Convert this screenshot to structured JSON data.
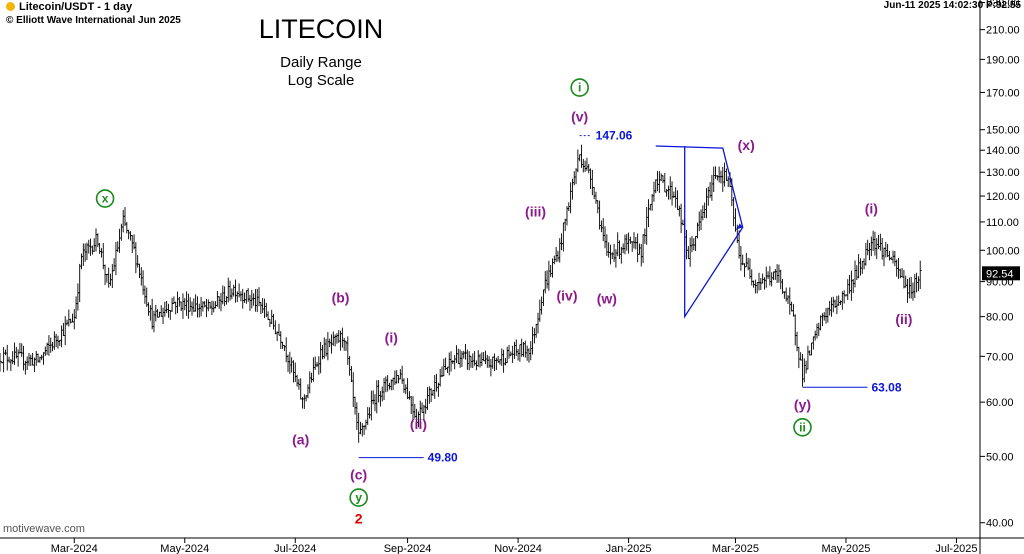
{
  "header": {
    "symbol": "Litecoin/USDT - 1 day",
    "copyright": "© Elliott Wave International Jun 2025",
    "stamp": "Jun-11 2025  14:02:30  P:92.55"
  },
  "title": "LITECOIN",
  "subtitle1": "Daily Range",
  "subtitle2": "Log Scale",
  "watermark": "motivewave.com",
  "colors": {
    "wave_purple": "#8b1a8b",
    "cycle_green": "#1a8a1a",
    "price_blue": "#0a16d6",
    "red": "#e00000",
    "bars": "#000000"
  },
  "chart_data": {
    "type": "line",
    "scale": "log",
    "ylim": [
      38,
      232
    ],
    "y_ticks": [
      40,
      50,
      60,
      70,
      80,
      90,
      100,
      110,
      120,
      130,
      140,
      150,
      170,
      190,
      210,
      230
    ],
    "x_ticks": [
      "Mar-2024",
      "May-2024",
      "Jul-2024",
      "Sep-2024",
      "Nov-2024",
      "Jan-2025",
      "Mar-2025",
      "May-2025",
      "Jul-2025"
    ],
    "last_price": "92.54",
    "series": [
      {
        "values": [
          [
            "2024-01-20",
            70
          ],
          [
            "2024-02-10",
            69
          ],
          [
            "2024-03-01",
            80
          ],
          [
            "2024-03-05",
            98
          ],
          [
            "2024-03-14",
            104
          ],
          [
            "2024-03-20",
            88
          ],
          [
            "2024-03-28",
            110
          ],
          [
            "2024-04-03",
            100
          ],
          [
            "2024-04-13",
            79
          ],
          [
            "2024-04-25",
            84
          ],
          [
            "2024-05-15",
            82
          ],
          [
            "2024-05-28",
            88
          ],
          [
            "2024-06-12",
            83
          ],
          [
            "2024-06-24",
            74
          ],
          [
            "2024-07-05",
            60
          ],
          [
            "2024-07-15",
            71
          ],
          [
            "2024-07-28",
            75
          ],
          [
            "2024-08-05",
            53
          ],
          [
            "2024-08-15",
            62
          ],
          [
            "2024-08-28",
            66
          ],
          [
            "2024-09-06",
            57
          ],
          [
            "2024-09-18",
            65
          ],
          [
            "2024-09-28",
            70
          ],
          [
            "2024-10-15",
            68
          ],
          [
            "2024-10-30",
            71
          ],
          [
            "2024-11-08",
            72
          ],
          [
            "2024-11-15",
            88
          ],
          [
            "2024-11-24",
            101
          ],
          [
            "2024-12-01",
            125
          ],
          [
            "2024-12-05",
            138
          ],
          [
            "2024-12-12",
            126
          ],
          [
            "2024-12-20",
            98
          ],
          [
            "2024-12-30",
            102
          ],
          [
            "2025-01-08",
            100
          ],
          [
            "2025-01-16",
            128
          ],
          [
            "2025-01-27",
            120
          ],
          [
            "2025-02-03",
            98
          ],
          [
            "2025-02-10",
            111
          ],
          [
            "2025-02-18",
            130
          ],
          [
            "2025-02-25",
            127
          ],
          [
            "2025-03-03",
            98
          ],
          [
            "2025-03-12",
            90
          ],
          [
            "2025-03-25",
            92
          ],
          [
            "2025-04-02",
            79
          ],
          [
            "2025-04-07",
            66
          ],
          [
            "2025-04-18",
            80
          ],
          [
            "2025-04-30",
            86
          ],
          [
            "2025-05-10",
            96
          ],
          [
            "2025-05-15",
            104
          ],
          [
            "2025-05-25",
            98
          ],
          [
            "2025-06-05",
            87
          ],
          [
            "2025-06-11",
            92.5
          ]
        ]
      }
    ],
    "annotations": [
      {
        "date": "2024-03-18",
        "price": 112,
        "label": "x",
        "style": "circle-green",
        "pos": "above"
      },
      {
        "date": "2024-07-04",
        "price": 56,
        "label": "(a)",
        "style": "purple",
        "pos": "below"
      },
      {
        "date": "2024-07-26",
        "price": 80,
        "label": "(b)",
        "style": "purple",
        "pos": "above"
      },
      {
        "date": "2024-08-05",
        "price": 49.8,
        "label": "(c)",
        "style": "purple",
        "pos": "below"
      },
      {
        "date": "2024-08-05",
        "price": 49.8,
        "label": "y",
        "style": "circle-green",
        "pos": "below2"
      },
      {
        "date": "2024-08-05",
        "price": 49.8,
        "label": "2",
        "style": "red",
        "pos": "below3"
      },
      {
        "date": "2024-08-23",
        "price": 70,
        "label": "(i)",
        "style": "purple",
        "pos": "above"
      },
      {
        "date": "2024-09-07",
        "price": 59,
        "label": "(ii)",
        "style": "purple",
        "pos": "below"
      },
      {
        "date": "2024-11-25",
        "price": 112,
        "label": "(iii)",
        "style": "purple",
        "pos": "left"
      },
      {
        "date": "2024-11-28",
        "price": 91,
        "label": "(iv)",
        "style": "purple",
        "pos": "below"
      },
      {
        "date": "2024-12-05",
        "price": 147.06,
        "label": "(v)",
        "style": "purple",
        "pos": "above"
      },
      {
        "date": "2024-12-05",
        "price": 147.06,
        "label": "i",
        "style": "circle-green",
        "pos": "above2"
      },
      {
        "date": "2024-12-20",
        "price": 90,
        "label": "(w)",
        "style": "purple",
        "pos": "below"
      },
      {
        "date": "2025-02-25",
        "price": 140,
        "label": "(x)",
        "style": "purple",
        "pos": "right"
      },
      {
        "date": "2025-04-07",
        "price": 63.08,
        "label": "(y)",
        "style": "purple",
        "pos": "below"
      },
      {
        "date": "2025-04-07",
        "price": 63.08,
        "label": "ii",
        "style": "circle-green",
        "pos": "below2"
      },
      {
        "date": "2025-05-15",
        "price": 108,
        "label": "(i)",
        "style": "purple",
        "pos": "above"
      },
      {
        "date": "2025-06-02",
        "price": 84,
        "label": "(ii)",
        "style": "purple",
        "pos": "below"
      }
    ],
    "price_labels": [
      {
        "date": "2024-08-05",
        "price": 49.8,
        "label": "49.80"
      },
      {
        "date": "2024-12-05",
        "price": 147.06,
        "label": "147.06"
      },
      {
        "date": "2025-04-07",
        "price": 63.08,
        "label": "63.08"
      }
    ],
    "triangle": [
      [
        "2025-01-16",
        142
      ],
      [
        "2025-02-22",
        141
      ],
      [
        "2025-03-05",
        108
      ],
      [
        "2025-02-01",
        80
      ],
      [
        "2025-02-01",
        142
      ]
    ]
  }
}
